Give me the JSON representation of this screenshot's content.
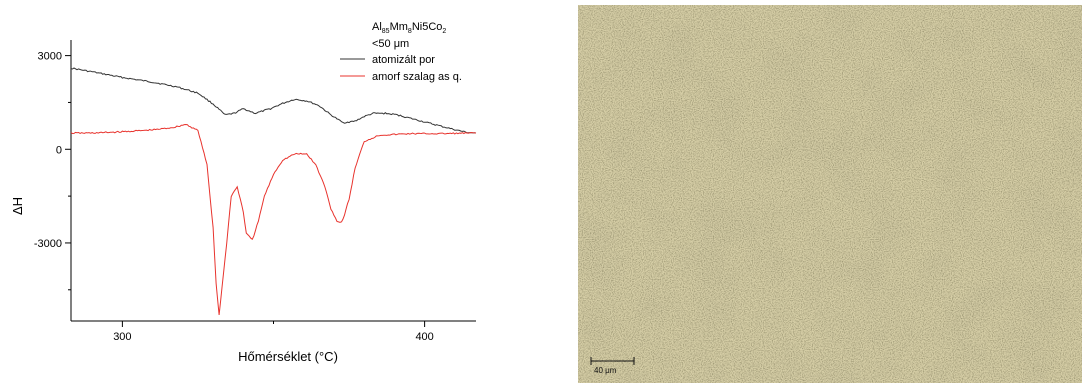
{
  "chart_data": {
    "type": "line",
    "xlabel": "Hőmérséklet (°C)",
    "ylabel": "ΔH",
    "xlim": [
      283,
      417
    ],
    "ylim": [
      -5500,
      3500
    ],
    "x_ticks": [
      300,
      400
    ],
    "y_ticks": [
      3000,
      0,
      -3000
    ],
    "x_tick_labels": [
      "300",
      "400"
    ],
    "y_tick_labels": [
      "3000",
      "0",
      "-3000"
    ],
    "legend": {
      "title_main": "Al",
      "title_sub1": "85",
      "title_mid": "Mm",
      "title_sub2": "8",
      "title_mid2": "Ni5Co",
      "title_sub3": "2",
      "subtitle": "<50 μm",
      "placement": "top-right"
    },
    "grid": false,
    "series": [
      {
        "name": "atomizált por",
        "color": "#333333",
        "x": [
          283,
          290,
          300,
          310,
          318,
          325,
          330,
          334,
          337,
          340,
          344,
          349,
          353,
          357,
          361,
          365,
          369,
          373,
          377,
          380,
          383,
          387,
          391,
          397,
          403,
          409,
          414,
          417
        ],
        "y": [
          2600,
          2480,
          2300,
          2150,
          2000,
          1800,
          1450,
          1100,
          1150,
          1300,
          1150,
          1300,
          1470,
          1600,
          1550,
          1400,
          1100,
          850,
          900,
          1050,
          1150,
          1150,
          1100,
          950,
          800,
          650,
          540,
          520
        ]
      },
      {
        "name": "amorf szalag as q.",
        "color": "#e8332d",
        "x": [
          283,
          290,
          300,
          310,
          317,
          321,
          325,
          328,
          330,
          331,
          332,
          334,
          336,
          338,
          340,
          341,
          343,
          345,
          347,
          350,
          353,
          357,
          361,
          364,
          367,
          369,
          371,
          372,
          373,
          375,
          377,
          380,
          385,
          395,
          405,
          417
        ],
        "y": [
          520,
          520,
          560,
          620,
          700,
          800,
          600,
          -500,
          -2500,
          -4300,
          -5300,
          -3500,
          -1500,
          -1200,
          -2000,
          -2700,
          -2900,
          -2300,
          -1500,
          -800,
          -350,
          -150,
          -150,
          -500,
          -1200,
          -1900,
          -2300,
          -2350,
          -2250,
          -1600,
          -600,
          250,
          450,
          500,
          500,
          520
        ]
      }
    ]
  },
  "micrograph": {
    "scale_label": "40 μm",
    "background_color": "#d7cfa7"
  }
}
